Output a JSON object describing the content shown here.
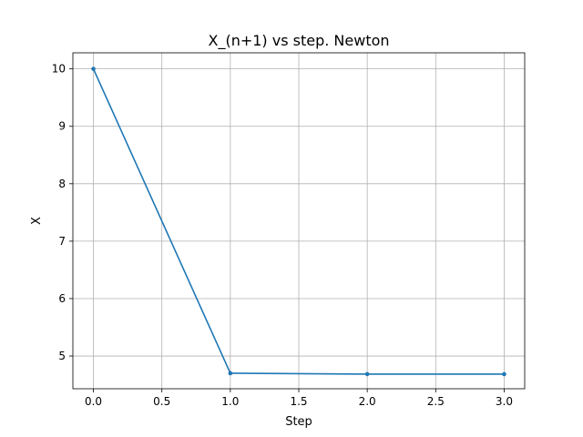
{
  "chart_data": {
    "type": "line",
    "title": "X_(n+1) vs step. Newton",
    "xlabel": "Step",
    "ylabel": "X",
    "xlim": [
      -0.15,
      3.15
    ],
    "ylim": [
      4.43,
      10.28
    ],
    "xticks": [
      0.0,
      0.5,
      1.0,
      1.5,
      2.0,
      2.5,
      3.0
    ],
    "xtick_labels": [
      "0.0",
      "0.5",
      "1.0",
      "1.5",
      "2.0",
      "2.5",
      "3.0"
    ],
    "yticks": [
      5,
      6,
      7,
      8,
      9,
      10
    ],
    "ytick_labels": [
      "5",
      "6",
      "7",
      "8",
      "9",
      "10"
    ],
    "grid": true,
    "series": [
      {
        "color": "#1f77b4",
        "marker": "point",
        "x": [
          0,
          1,
          2,
          3
        ],
        "y": [
          10.0,
          4.7,
          4.685,
          4.684
        ]
      }
    ]
  }
}
